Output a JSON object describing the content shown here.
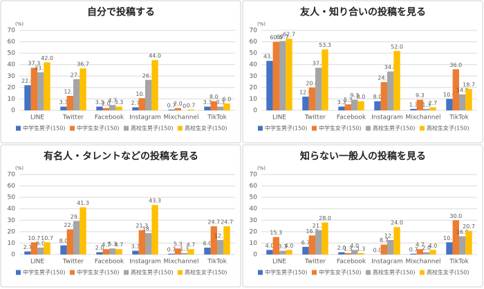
{
  "chart_data": [
    {
      "type": "bar",
      "title": "自分で投稿する",
      "y_label": "(%)",
      "categories": [
        "LINE",
        "Twitter",
        "Facebook",
        "Instagram",
        "Mixchannel",
        "TikTok"
      ],
      "ylim": [
        0,
        70
      ],
      "yticks": [
        0,
        10,
        20,
        30,
        40,
        50,
        60,
        70
      ],
      "grid": true,
      "series": [
        {
          "name": "中学生男子(150)",
          "color": "#4472c4",
          "values": [
            22.0,
            3.3,
            3.3,
            2.7,
            0.7,
            3.3
          ],
          "value_labels": [
            "22.0",
            "3.3",
            "3.3",
            "2.7",
            "0.7",
            "3.3"
          ]
        },
        {
          "name": "中学生女子(150)",
          "color": "#ed7d31",
          "values": [
            37.3,
            12.7,
            2.0,
            10.7,
            2.0,
            8.0
          ],
          "value_labels": [
            "37.3",
            "12.7",
            "2.0",
            "10.7",
            "2.0",
            "8.0"
          ]
        },
        {
          "name": "高校生男子(150)",
          "color": "#a5a5a5",
          "values": [
            33.3,
            27.3,
            4.7,
            26.7,
            0,
            3.3
          ],
          "value_labels": [
            "33.3",
            "27.3",
            "4.7",
            "26.7",
            "0",
            "3.3"
          ]
        },
        {
          "name": "高校生女子(150)",
          "color": "#ffc000",
          "values": [
            42.0,
            36.7,
            3.3,
            44.0,
            0.7,
            6.0
          ],
          "value_labels": [
            "42.0",
            "36.7",
            "3.3",
            "44.0",
            "0.7",
            "6.0"
          ]
        }
      ]
    },
    {
      "type": "bar",
      "title": "友人・知り合いの投稿を見る",
      "y_label": "(%)",
      "categories": [
        "LINE",
        "Twitter",
        "Facebook",
        "Instagram",
        "Mixchannel",
        "TikTok"
      ],
      "ylim": [
        0,
        70
      ],
      "yticks": [
        0,
        10,
        20,
        30,
        40,
        50,
        60,
        70
      ],
      "grid": true,
      "series": [
        {
          "name": "中学生男子(150)",
          "color": "#4472c4",
          "values": [
            43.3,
            12.0,
            3.3,
            8.0,
            1.3,
            10.0
          ],
          "value_labels": [
            "43.3",
            "12.0",
            "3.3",
            "8.0",
            "1.3",
            "10.0"
          ]
        },
        {
          "name": "中学生女子(150)",
          "color": "#ed7d31",
          "values": [
            60.0,
            20.0,
            5.3,
            24.7,
            9.3,
            36.0
          ],
          "value_labels": [
            "60.0",
            "20.0",
            "5.3",
            "24.7",
            "9.3",
            "36.0"
          ]
        },
        {
          "name": "高校生男子(150)",
          "color": "#a5a5a5",
          "values": [
            60.7,
            37.3,
            9.3,
            34.0,
            1.3,
            14.0
          ],
          "value_labels": [
            "60.7",
            "37.3",
            "9.3",
            "34.0",
            "1.3",
            "14.0"
          ]
        },
        {
          "name": "高校生女子(150)",
          "color": "#ffc000",
          "values": [
            62.7,
            53.3,
            8.0,
            52.0,
            2.7,
            18.7
          ],
          "value_labels": [
            "62.7",
            "53.3",
            "8.0",
            "52.0",
            "2.7",
            "18.7"
          ]
        }
      ]
    },
    {
      "type": "bar",
      "title": "有名人・タレントなどの投稿を見る",
      "y_label": "(%)",
      "categories": [
        "LINE",
        "Twitter",
        "Facebook",
        "Instagram",
        "Mixchannel",
        "TikTok"
      ],
      "ylim": [
        0,
        70
      ],
      "yticks": [
        0,
        10,
        20,
        30,
        40,
        50,
        60,
        70
      ],
      "grid": true,
      "series": [
        {
          "name": "中学生男子(150)",
          "color": "#4472c4",
          "values": [
            2.7,
            8.0,
            2.0,
            3.3,
            0.7,
            6.0
          ],
          "value_labels": [
            "2.7",
            "8.0",
            "2.0",
            "3.3",
            "0.7",
            "6.0"
          ]
        },
        {
          "name": "中学生女子(150)",
          "color": "#ed7d31",
          "values": [
            10.7,
            22.0,
            4.7,
            21.3,
            5.3,
            24.7
          ],
          "value_labels": [
            "10.7",
            "22.0",
            "4.7",
            "21.3",
            "5.3",
            "24.7"
          ]
        },
        {
          "name": "高校生男子(150)",
          "color": "#a5a5a5",
          "values": [
            6.0,
            29.3,
            5.3,
            18.7,
            1.3,
            12.7
          ],
          "value_labels": [
            "6.0",
            "29.3",
            "5.3",
            "18.7",
            "1.3",
            "12.7"
          ]
        },
        {
          "name": "高校生女子(150)",
          "color": "#ffc000",
          "values": [
            10.7,
            41.3,
            4.7,
            43.3,
            4.7,
            24.7
          ],
          "value_labels": [
            "10.7",
            "41.3",
            "4.7",
            "43.3",
            "4.7",
            "24.7"
          ]
        }
      ]
    },
    {
      "type": "bar",
      "title": "知らない一般人の投稿を見る",
      "y_label": "(%)",
      "categories": [
        "LINE",
        "Twitter",
        "Facebook",
        "Instagram",
        "Mixchannel",
        "TikTok"
      ],
      "ylim": [
        0,
        70
      ],
      "yticks": [
        0,
        10,
        20,
        30,
        40,
        50,
        60,
        70
      ],
      "grid": true,
      "series": [
        {
          "name": "中学生男子(150)",
          "color": "#4472c4",
          "values": [
            4.0,
            6.7,
            2.0,
            0.0,
            0.7,
            10.7
          ],
          "value_labels": [
            "4.0",
            "6.7",
            "2.0",
            "0.0",
            "0.7",
            "10.7"
          ]
        },
        {
          "name": "中学生女子(150)",
          "color": "#ed7d31",
          "values": [
            15.3,
            16.7,
            1.3,
            8.7,
            4.7,
            30.0
          ],
          "value_labels": [
            "15.3",
            "16.7",
            "1.3",
            "8.7",
            "4.7",
            "30.0"
          ]
        },
        {
          "name": "高校生男子(150)",
          "color": "#a5a5a5",
          "values": [
            3.3,
            21.3,
            4.0,
            12.7,
            2.0,
            16.0
          ],
          "value_labels": [
            "3.3",
            "21.3",
            "4.0",
            "12.7",
            "2.0",
            "16.0"
          ]
        },
        {
          "name": "高校生女子(150)",
          "color": "#ffc000",
          "values": [
            4.0,
            28.0,
            1.3,
            24.0,
            4.0,
            20.7
          ],
          "value_labels": [
            "4.0",
            "28.0",
            "1.3",
            "24.0",
            "4.0",
            "20.7"
          ]
        }
      ]
    }
  ]
}
